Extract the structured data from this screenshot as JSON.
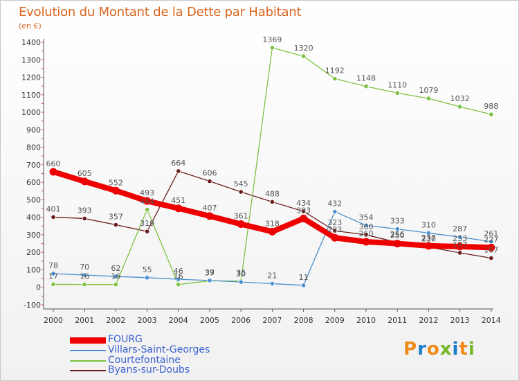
{
  "title": "Evolution du Montant de la Dette par Habitant",
  "subtitle": "(en €)",
  "logo": {
    "text": "Proxiti",
    "colors": [
      "#f08a1c",
      "#1e7fc8",
      "#f08a1c",
      "#76b82a",
      "#1e7fc8",
      "#f08a1c",
      "#76b82a"
    ]
  },
  "chart_data": {
    "type": "line",
    "title": "Evolution du Montant de la Dette par Habitant",
    "subtitle": "(en €)",
    "xlabel": "",
    "ylabel": "",
    "x": [
      "2000",
      "2001",
      "2002",
      "2003",
      "2004",
      "2005",
      "2006",
      "2007",
      "2008",
      "2009",
      "2010",
      "2011",
      "2012",
      "2013",
      "2014"
    ],
    "ylim": [
      -100,
      1400
    ],
    "yticks": [
      -100,
      0,
      100,
      200,
      300,
      400,
      500,
      600,
      700,
      800,
      900,
      1000,
      1100,
      1200,
      1300,
      1400
    ],
    "grid": false,
    "legend_position": "bottom-left",
    "series": [
      {
        "name": "FOURG",
        "color": "#ee0000",
        "values": [
          660,
          605,
          552,
          493,
          451,
          407,
          361,
          318,
          393,
          283,
          260,
          250,
          237,
          233,
          227
        ]
      },
      {
        "name": "Villars-Saint-Georges",
        "color": "#4a8fcf",
        "values": [
          78,
          70,
          62,
          55,
          46,
          39,
          30,
          21,
          11,
          432,
          354,
          333,
          310,
          287,
          261
        ]
      },
      {
        "name": "Courtefontaine",
        "color": "#7dc142",
        "values": [
          17,
          16,
          16,
          444,
          16,
          37,
          36,
          1369,
          1320,
          1192,
          1148,
          1110,
          1079,
          1032,
          988
        ]
      },
      {
        "name": "Byans-sur-Doubs",
        "color": "#6b1a1a",
        "values": [
          401,
          393,
          357,
          319,
          664,
          606,
          545,
          488,
          434,
          323,
          300,
          256,
          230,
          197,
          167
        ]
      }
    ]
  }
}
